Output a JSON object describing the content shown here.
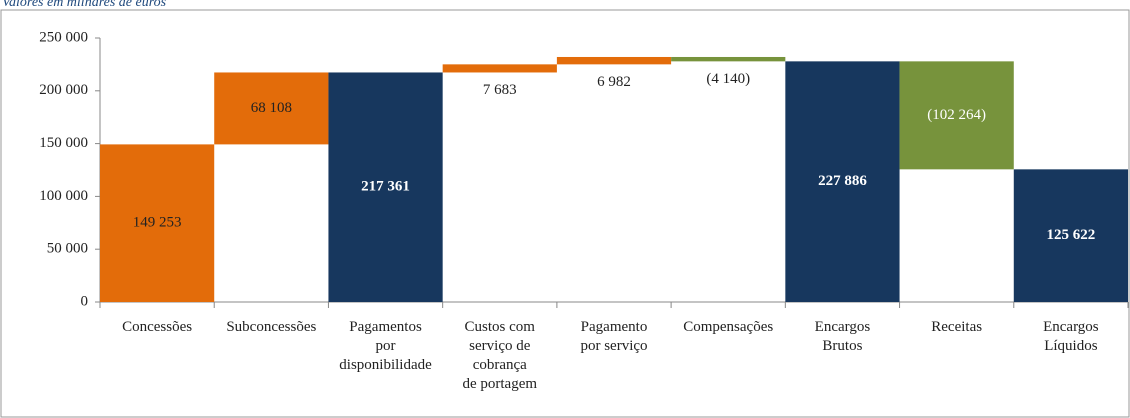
{
  "chart_data": {
    "type": "waterfall",
    "title": "Valores em milhares de euros",
    "categories": [
      "Concessões",
      "Subconcessões",
      "Pagamentos\npor\ndisponibilidade",
      "Custos com\nserviço de\ncobrança\nde portagem",
      "Pagamento\npor serviço",
      "Compensações",
      "Encargos\nBrutos",
      "Receitas",
      "Encargos\nLíquidos"
    ],
    "values": [
      149253,
      68108,
      217361,
      7683,
      6982,
      -4140,
      227886,
      -102264,
      125622
    ],
    "value_labels": [
      "149 253",
      "68 108",
      "217 361",
      "7 683",
      "6 982",
      "(4 140)",
      "227 886",
      "(102 264)",
      "125 622"
    ],
    "total_bars": [
      false,
      false,
      true,
      false,
      false,
      false,
      true,
      false,
      true
    ],
    "colors": [
      "#e36c0a",
      "#e36c0a",
      "#17375e",
      "#e36c0a",
      "#e36c0a",
      "#77933c",
      "#17375e",
      "#77933c",
      "#17375e"
    ],
    "value_label_colors": [
      "#222222",
      "#222222",
      "#ffffff",
      "#222222",
      "#222222",
      "#222222",
      "#ffffff",
      "#ffffff",
      "#ffffff"
    ],
    "ylim": [
      0,
      250000
    ],
    "yticks": [
      0,
      {
        "value": 50000,
        "label": "50 000"
      },
      {
        "value": 100000,
        "label": "100 000"
      },
      {
        "value": 150000,
        "label": "150 000"
      },
      {
        "value": 200000,
        "label": "200 000"
      },
      {
        "value": 250000,
        "label": "250 000"
      }
    ]
  }
}
